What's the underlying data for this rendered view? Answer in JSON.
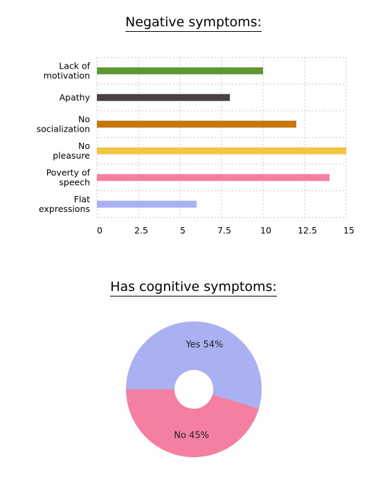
{
  "chart_data": [
    {
      "type": "bar",
      "orientation": "horizontal",
      "title": "Negative symptoms:",
      "categories": [
        [
          "Lack of",
          "motivation"
        ],
        [
          "Apathy"
        ],
        [
          "No",
          "socialization"
        ],
        [
          "No",
          "pleasure"
        ],
        [
          "Poverty of",
          "speech"
        ],
        [
          "Flat",
          "expressions"
        ]
      ],
      "values": [
        10,
        8,
        12,
        15,
        14,
        6
      ],
      "colors": [
        "#5e9732",
        "#4a4143",
        "#c6760a",
        "#f2c443",
        "#f57fa0",
        "#aab1f2"
      ],
      "xlim": [
        0,
        15
      ],
      "xticks": [
        "0",
        "2.5",
        "5",
        "7.5",
        "10",
        "12.5",
        "15"
      ],
      "grid": true
    },
    {
      "type": "pie",
      "donut": true,
      "title": "Has cognitive symptoms:",
      "slices": [
        {
          "label": "Yes 54%",
          "value": 54,
          "color": "#aab1f2"
        },
        {
          "label": "No 45%",
          "value": 45,
          "color": "#f57fa0"
        }
      ]
    }
  ]
}
